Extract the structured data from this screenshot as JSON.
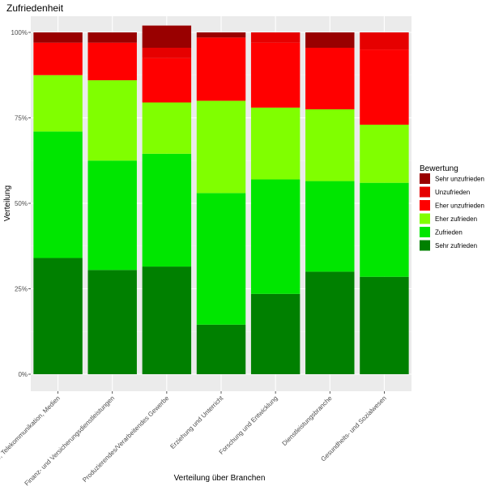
{
  "chart_data": {
    "type": "bar",
    "stacked": true,
    "title": "Zufriedenheit",
    "xlabel": "Verteilung über Branchen",
    "ylabel": "Verteilung",
    "ylim": [
      0,
      1
    ],
    "y_ticks": [
      "0%",
      "25%",
      "50%",
      "75%",
      "100%"
    ],
    "grid": true,
    "legend_position": "right",
    "legend_title": "Bewertung",
    "categories": [
      "IT, Telekommunikation, Medien",
      "Finanz- und Versicherungsdienstleistungen",
      "Produzierendes/Verarbeitendes Gewerbe",
      "Erziehung und Unterricht",
      "Forschung und Entwicklung",
      "Dienstleistungsbranche",
      "Gesundheits- und Sozialwesen"
    ],
    "series": [
      {
        "name": "Sehr zufrieden",
        "color": "#008000",
        "values": [
          0.34,
          0.305,
          0.315,
          0.145,
          0.235,
          0.3,
          0.285
        ]
      },
      {
        "name": "Zufrieden",
        "color": "#00e600",
        "values": [
          0.37,
          0.32,
          0.33,
          0.385,
          0.335,
          0.265,
          0.275
        ]
      },
      {
        "name": "Eher zufrieden",
        "color": "#80ff00",
        "values": [
          0.165,
          0.235,
          0.15,
          0.27,
          0.21,
          0.21,
          0.17
        ]
      },
      {
        "name": "Eher unzufrieden",
        "color": "#ff0000",
        "values": [
          0.095,
          0.11,
          0.13,
          0.185,
          0.19,
          0.18,
          0.22
        ]
      },
      {
        "name": "Unzufrieden",
        "color": "#e60000",
        "values": [
          0.0,
          0.0,
          0.03,
          0.0,
          0.03,
          0.0,
          0.05
        ]
      },
      {
        "name": "Sehr unzufrieden",
        "color": "#990000",
        "values": [
          0.03,
          0.03,
          0.065,
          0.015,
          0.0,
          0.045,
          0.0
        ]
      }
    ],
    "legend_order": [
      "Sehr unzufrieden",
      "Unzufrieden",
      "Eher unzufrieden",
      "Eher zufrieden",
      "Zufrieden",
      "Sehr zufrieden"
    ]
  }
}
